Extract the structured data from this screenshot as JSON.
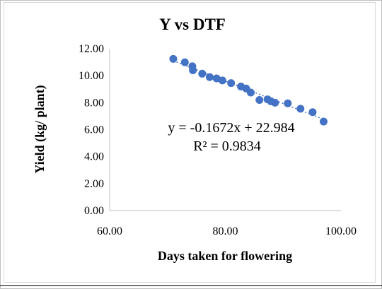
{
  "chart_data": {
    "type": "scatter",
    "title": "Y vs DTF",
    "xlabel": "Days taken for flowering",
    "ylabel": "Yield (kg/ plant)",
    "xlim": [
      60,
      100
    ],
    "ylim": [
      0,
      12
    ],
    "x_ticks": [
      "60.00",
      "80.00",
      "100.00"
    ],
    "y_ticks": [
      "0.00",
      "2.00",
      "4.00",
      "6.00",
      "8.00",
      "10.00",
      "12.00"
    ],
    "series": [
      {
        "color": "#4472C4",
        "x": [
          71.0,
          73.0,
          74.3,
          74.4,
          76.0,
          77.3,
          78.5,
          79.5,
          81.0,
          82.7,
          83.6,
          84.4,
          85.9,
          87.3,
          87.9,
          88.6,
          90.8,
          93.0,
          95.1,
          97.0
        ],
        "y": [
          11.25,
          11.0,
          10.7,
          10.4,
          10.15,
          9.9,
          9.8,
          9.65,
          9.45,
          9.2,
          9.05,
          8.75,
          8.2,
          8.25,
          8.1,
          8.0,
          7.95,
          7.55,
          7.3,
          6.6
        ]
      }
    ],
    "trendline": {
      "slope": -0.1672,
      "intercept": 22.984,
      "x_range": [
        71.0,
        97.0
      ],
      "style": "dotted"
    },
    "equation_label": "y = -0.1672x + 22.984",
    "r2_label": "R² = 0.9834",
    "grid": false,
    "legend": "none"
  }
}
